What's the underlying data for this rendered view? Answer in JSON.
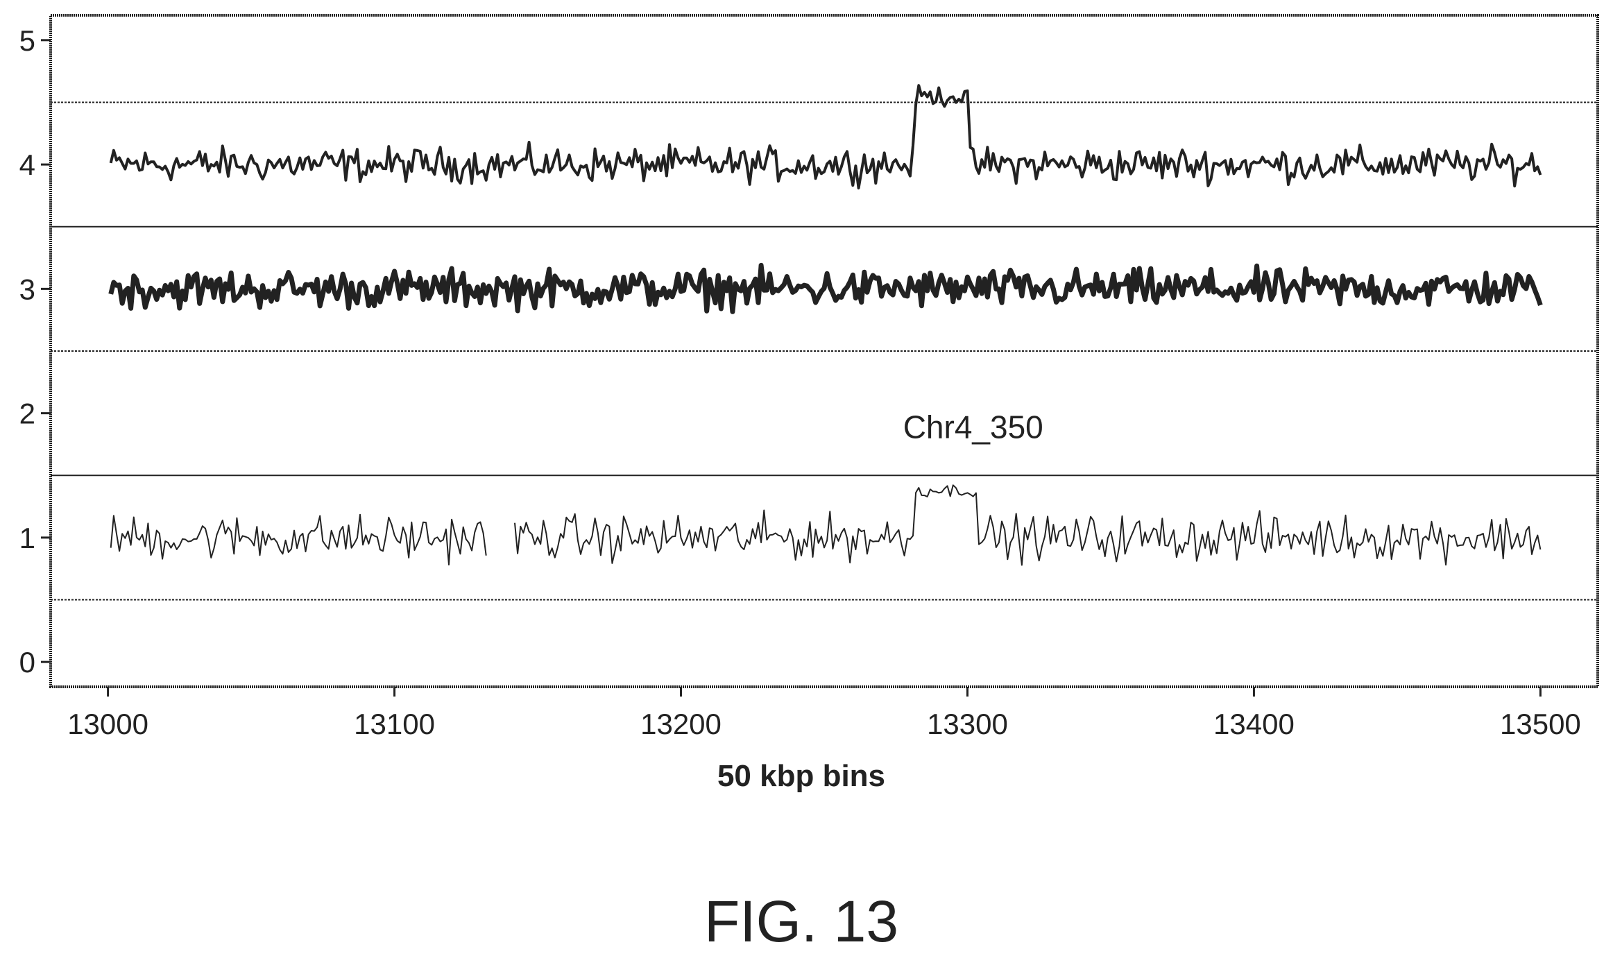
{
  "chart_data": {
    "type": "line",
    "title": "",
    "xlabel": "50 kbp bins",
    "ylabel": "",
    "xlim": [
      12980,
      13520
    ],
    "ylim": [
      -0.2,
      5.2
    ],
    "xticks": [
      13000,
      13100,
      13200,
      13300,
      13400,
      13500
    ],
    "xtick_labels": [
      "13000",
      "13100",
      "13200",
      "13300",
      "13400",
      "13500"
    ],
    "yticks": [
      0,
      1,
      2,
      3,
      4,
      5
    ],
    "ytick_labels": [
      "0",
      "1",
      "2",
      "3",
      "4",
      "5"
    ],
    "grid": false,
    "reference_lines": [
      0.5,
      1.5,
      2.5,
      3.5,
      4.5
    ],
    "series": [
      {
        "x_start": 13001,
        "x_end": 13500,
        "baseline": 4.0,
        "noise": 0.1,
        "stroke": 4,
        "segments": [
          [
            13001,
            13500
          ]
        ],
        "peaks": [
          {
            "x_from": 13282,
            "x_to": 13300,
            "level": 4.55,
            "noise": 0.06
          }
        ]
      },
      {
        "x_start": 13001,
        "x_end": 13500,
        "baseline": 3.0,
        "noise": 0.11,
        "stroke": 7,
        "segments": [
          [
            13001,
            13500
          ]
        ],
        "peaks": []
      },
      {
        "x_start": 13001,
        "x_end": 13500,
        "baseline": 1.0,
        "noise": 0.13,
        "stroke": 2,
        "segments": [
          [
            13001,
            13132
          ],
          [
            13142,
            13500
          ]
        ],
        "peaks": [
          {
            "x_from": 13282,
            "x_to": 13303,
            "level": 1.38,
            "noise": 0.04
          }
        ]
      }
    ],
    "annotations": [
      {
        "text": "Chr4_350",
        "x": 13302,
        "y": 1.8
      }
    ]
  },
  "figure_label": "FIG. 13"
}
